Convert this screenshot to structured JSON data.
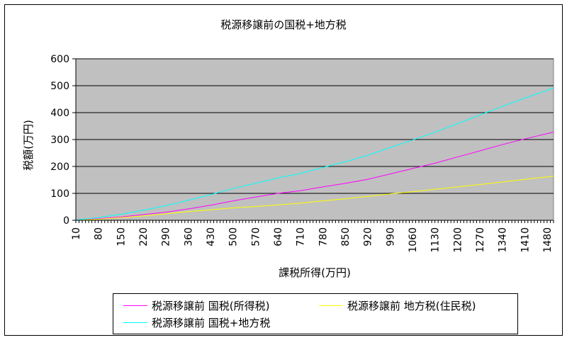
{
  "chart_data": {
    "type": "line",
    "title": "税源移譲前の国税+地方税",
    "xlabel": "課税所得(万円)",
    "ylabel": "税額(万円)",
    "ylim": [
      0,
      600
    ],
    "yticks": [
      0,
      100,
      200,
      300,
      400,
      500,
      600
    ],
    "xticks": [
      10,
      80,
      150,
      220,
      290,
      360,
      430,
      500,
      570,
      640,
      710,
      780,
      850,
      920,
      990,
      1060,
      1130,
      1200,
      1270,
      1340,
      1410,
      1480
    ],
    "xlim": [
      10,
      1500
    ],
    "grid": "horizontal",
    "plot_background": "#c0c0c0",
    "legend_placement": "bottom",
    "series": [
      {
        "name": "税源移譲前 国税(所得税)",
        "color": "#ff00ff",
        "x": [
          10,
          80,
          150,
          220,
          290,
          360,
          430,
          500,
          570,
          640,
          710,
          780,
          850,
          920,
          990,
          1060,
          1130,
          1200,
          1270,
          1340,
          1410,
          1480,
          1500
        ],
        "values": [
          1,
          6,
          12,
          21,
          30,
          42,
          56,
          72,
          86,
          100,
          110,
          124,
          137,
          152,
          172,
          192,
          212,
          235,
          258,
          281,
          302,
          322,
          328
        ]
      },
      {
        "name": "税源移譲前 地方税(住民税)",
        "color": "#ffff00",
        "x": [
          10,
          80,
          150,
          220,
          290,
          360,
          430,
          500,
          570,
          640,
          710,
          780,
          850,
          920,
          990,
          1060,
          1130,
          1200,
          1270,
          1340,
          1410,
          1480,
          1500
        ],
        "values": [
          0,
          4,
          10,
          16,
          24,
          32,
          39,
          46,
          51,
          57,
          64,
          72,
          80,
          89,
          98,
          106,
          115,
          124,
          133,
          142,
          152,
          161,
          164
        ]
      },
      {
        "name": "税源移譲前 国税+地方税",
        "color": "#00ffff",
        "x": [
          10,
          80,
          150,
          220,
          290,
          360,
          430,
          500,
          570,
          640,
          710,
          780,
          850,
          920,
          990,
          1060,
          1130,
          1200,
          1270,
          1340,
          1410,
          1480,
          1500
        ],
        "values": [
          1,
          10,
          22,
          37,
          54,
          74,
          95,
          118,
          137,
          157,
          174,
          196,
          217,
          241,
          270,
          298,
          327,
          359,
          391,
          423,
          454,
          483,
          492
        ]
      }
    ]
  }
}
